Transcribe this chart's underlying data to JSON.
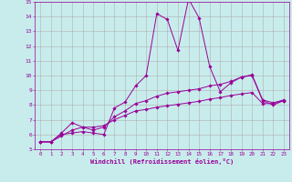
{
  "background_color": "#c8ecec",
  "grid_color": "#b0b0b0",
  "line_color": "#990099",
  "xlim": [
    -0.5,
    23.5
  ],
  "ylim": [
    5,
    15
  ],
  "xticks": [
    0,
    1,
    2,
    3,
    4,
    5,
    6,
    7,
    8,
    9,
    10,
    11,
    12,
    13,
    14,
    15,
    16,
    17,
    18,
    19,
    20,
    21,
    22,
    23
  ],
  "yticks": [
    5,
    6,
    7,
    8,
    9,
    10,
    11,
    12,
    13,
    14,
    15
  ],
  "xlabel": "Windchill (Refroidissement éolien,°C)",
  "series1_x": [
    0,
    1,
    2,
    3,
    4,
    5,
    6,
    7,
    8,
    9,
    10,
    11,
    12,
    13,
    14,
    15,
    16,
    17,
    18,
    19,
    20,
    21,
    22,
    23
  ],
  "series1_y": [
    5.5,
    5.5,
    6.0,
    6.1,
    6.2,
    6.1,
    6.0,
    7.8,
    8.2,
    9.3,
    10.0,
    14.2,
    13.8,
    11.7,
    15.2,
    13.9,
    10.6,
    8.9,
    9.5,
    9.9,
    10.0,
    8.3,
    8.0,
    8.3
  ],
  "series2_x": [
    0,
    1,
    2,
    3,
    4,
    5,
    6,
    7,
    8,
    9,
    10,
    11,
    12,
    13,
    14,
    15,
    16,
    17,
    18,
    19,
    20,
    21,
    22,
    23
  ],
  "series2_y": [
    5.5,
    5.5,
    5.9,
    6.3,
    6.5,
    6.5,
    6.6,
    7.0,
    7.3,
    7.6,
    7.7,
    7.85,
    7.95,
    8.05,
    8.15,
    8.25,
    8.4,
    8.5,
    8.65,
    8.75,
    8.85,
    8.1,
    8.1,
    8.3
  ],
  "series3_x": [
    0,
    1,
    2,
    3,
    4,
    5,
    6,
    7,
    8,
    9,
    10,
    11,
    12,
    13,
    14,
    15,
    16,
    17,
    18,
    19,
    20,
    21,
    22,
    23
  ],
  "series3_y": [
    5.5,
    5.5,
    6.1,
    6.8,
    6.5,
    6.3,
    6.5,
    7.2,
    7.6,
    8.1,
    8.3,
    8.6,
    8.8,
    8.9,
    9.0,
    9.1,
    9.3,
    9.4,
    9.6,
    9.9,
    10.05,
    8.35,
    8.15,
    8.35
  ]
}
